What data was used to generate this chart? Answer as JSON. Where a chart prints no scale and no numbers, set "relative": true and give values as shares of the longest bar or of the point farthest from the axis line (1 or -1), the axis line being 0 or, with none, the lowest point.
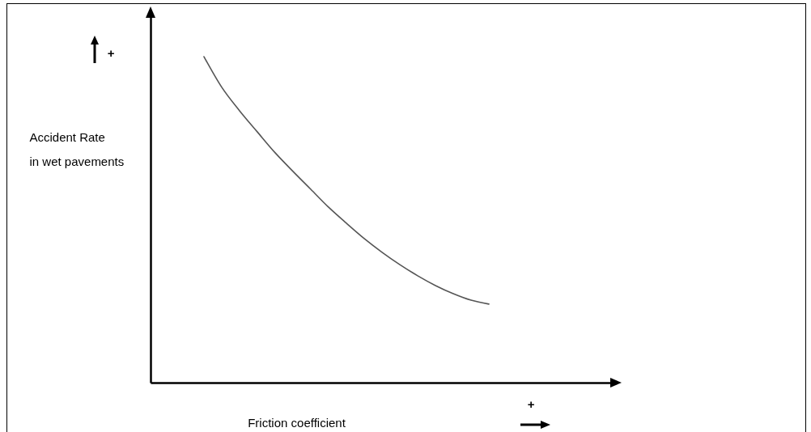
{
  "chart_data": {
    "type": "line",
    "relative": true,
    "xlabel": "Friction coefficient",
    "ylabel": "Accident Rate\nin wet pavements",
    "annotations": [
      "+",
      "+"
    ],
    "categories": [
      null,
      null,
      null,
      null,
      null,
      null,
      null,
      null,
      null,
      null,
      null,
      null,
      null,
      null,
      null,
      null,
      null,
      null,
      null,
      null,
      null,
      null,
      null,
      null,
      null,
      null,
      null
    ],
    "series": [
      {
        "color": "#555555",
        "values": [
          null,
          null,
          null,
          1,
          0.906,
          0.834,
          0.769,
          0.705,
          0.648,
          0.593,
          0.538,
          0.489,
          0.442,
          0.4,
          0.362,
          0.328,
          0.298,
          0.273,
          0.253,
          0.241,
          null,
          null,
          null,
          null,
          null,
          null,
          null
        ]
      }
    ]
  }
}
